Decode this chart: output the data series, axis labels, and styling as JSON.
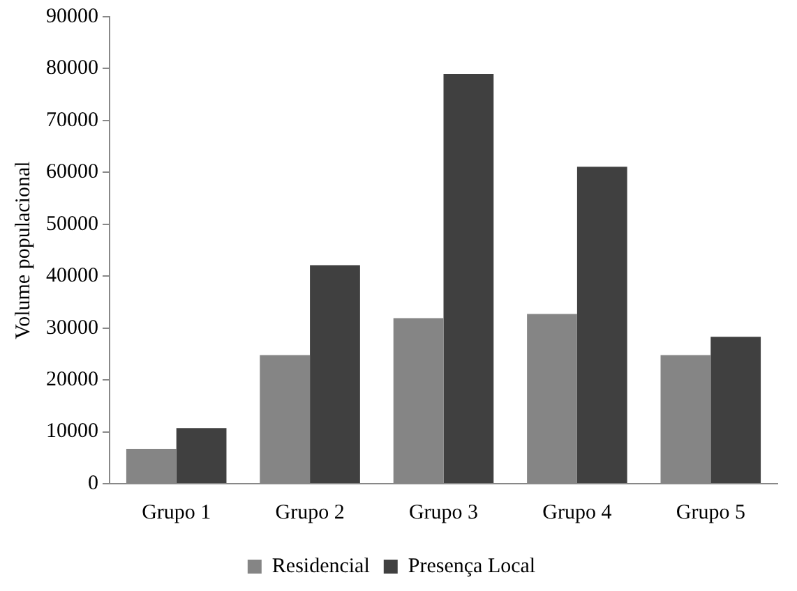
{
  "chart_data": {
    "type": "bar",
    "ylabel": "Volume populacional",
    "categories": [
      "Grupo 1",
      "Grupo 2",
      "Grupo 3",
      "Grupo 4",
      "Grupo 5"
    ],
    "series": [
      {
        "name": "Residencial",
        "color": "#858585",
        "values": [
          6700,
          24800,
          31900,
          32700,
          24800
        ]
      },
      {
        "name": "Presença Local",
        "color": "#404040",
        "values": [
          10700,
          42100,
          79000,
          61100,
          28300
        ]
      }
    ],
    "ylim": [
      0,
      90000
    ],
    "yticks": [
      0,
      10000,
      20000,
      30000,
      40000,
      50000,
      60000,
      70000,
      80000,
      90000
    ],
    "grid": false,
    "legend": "bottom"
  }
}
